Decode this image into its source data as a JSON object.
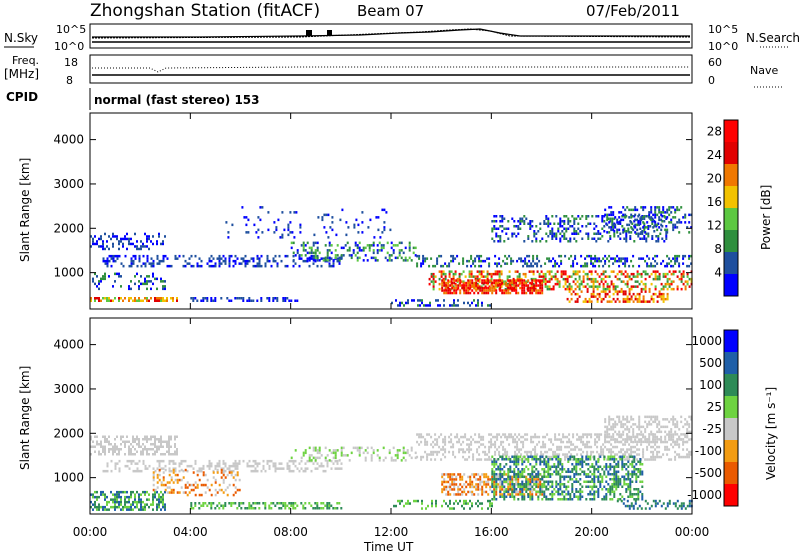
{
  "header": {
    "title": "Zhongshan Station (fitACF)",
    "beam": "Beam 07",
    "date": "07/Feb/2011"
  },
  "panels": {
    "nsky": {
      "label": "N.Sky",
      "tick_hi": "10^5",
      "tick_lo": "10^0"
    },
    "nsearch": {
      "label": "N.Search",
      "tick_hi": "10^5",
      "tick_lo": "10^0"
    },
    "freq": {
      "label_1": "Freq.",
      "label_2": "[MHz]",
      "tick_hi": "18",
      "tick_lo": "8"
    },
    "nave": {
      "label": "Nave",
      "tick_hi": "60",
      "tick_lo": "0"
    },
    "cpid": {
      "label": "CPID",
      "text": "normal (fast stereo) 153"
    }
  },
  "colors": {
    "power": [
      "#0000ff",
      "#1e4f9e",
      "#2f8f3e",
      "#5cc841",
      "#f2c200",
      "#f07800",
      "#e10000",
      "#ff0000"
    ],
    "velocity": [
      "#ff0000",
      "#ea5a00",
      "#f39c12",
      "#c8c8c8",
      "#6ed341",
      "#2e8b57",
      "#1f5fa8",
      "#0000ff"
    ]
  },
  "chart_data": [
    {
      "type": "heatmap",
      "title": "",
      "xlabel": "Time UT",
      "ylabel": "Slant Range [km]",
      "x_ticks": [
        "00:00",
        "04:00",
        "08:00",
        "12:00",
        "16:00",
        "20:00",
        "00:00"
      ],
      "x_range_hours": [
        0,
        24
      ],
      "y_ticks": [
        "1000",
        "2000",
        "3000",
        "4000"
      ],
      "ylim": [
        180,
        4600
      ],
      "colorbar": {
        "label": "Power [dB]",
        "ticks": [
          "4",
          "8",
          "12",
          "16",
          "20",
          "24",
          "28"
        ],
        "range": [
          0,
          30
        ]
      }
    },
    {
      "type": "heatmap",
      "title": "",
      "xlabel": "Time UT",
      "ylabel": "Slant Range [km]",
      "x_ticks": [
        "00:00",
        "04:00",
        "08:00",
        "12:00",
        "16:00",
        "20:00",
        "00:00"
      ],
      "x_range_hours": [
        0,
        24
      ],
      "y_ticks": [
        "1000",
        "2000",
        "3000",
        "4000"
      ],
      "ylim": [
        180,
        4600
      ],
      "colorbar": {
        "label": "Velocity [m s⁻¹]",
        "ticks": [
          "1000",
          "500",
          "100",
          "25",
          "-25",
          "-100",
          "-500",
          "-1000"
        ]
      }
    }
  ]
}
